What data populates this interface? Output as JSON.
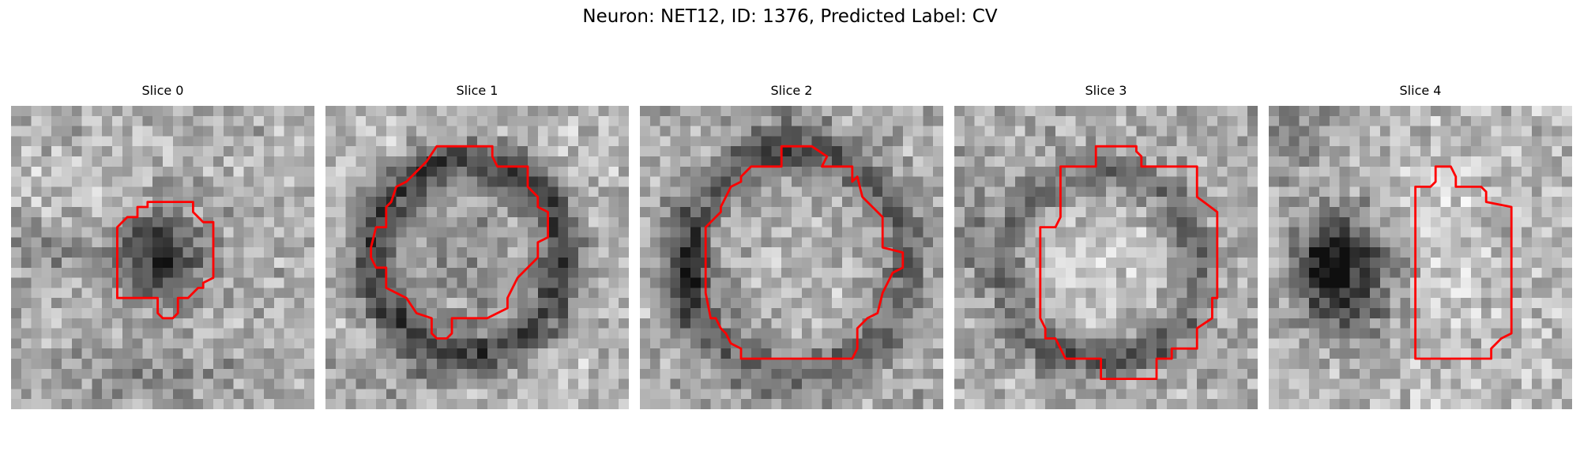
{
  "figure": {
    "title": "Neuron: NET12, ID: 1376, Predicted Label: CV"
  },
  "slices": [
    {
      "title": "Slice 0"
    },
    {
      "title": "Slice 1"
    },
    {
      "title": "Slice 2"
    },
    {
      "title": "Slice 3"
    },
    {
      "title": "Slice 4"
    }
  ],
  "colors": {
    "outline": "#ff0000",
    "background": "#ffffff"
  }
}
